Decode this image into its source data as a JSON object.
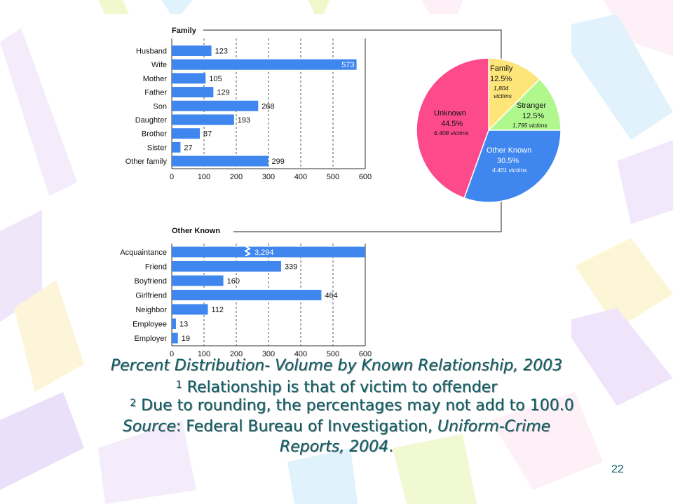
{
  "slide": {
    "number": "22"
  },
  "caption": {
    "line1": "Percent Distribution- Volume by Known Relationship, 2003",
    "line2_sup": "1",
    "line2": " Relationship is that of victim to offender",
    "line3_sup": "2",
    "line3": " Due to rounding, the percentages may not add to 100.0",
    "line4_italic": "Source",
    "line4_mid": ": Federal Bureau of Investigation, ",
    "line4_italic2": "Uniform-Crime",
    "line5": "Reports, 2004",
    "line5_end": "."
  },
  "colors": {
    "bar": "#3f86ee",
    "family": "#fde57a",
    "stranger": "#b0f88e",
    "other_known": "#3f86ee",
    "unknown": "#fc4a8b",
    "frame": "#6b6b6b"
  },
  "chart_data": [
    {
      "type": "bar",
      "title": "Family",
      "orientation": "horizontal",
      "categories": [
        "Husband",
        "Wife",
        "Mother",
        "Father",
        "Son",
        "Daughter",
        "Brother",
        "Sister",
        "Other family"
      ],
      "values": [
        123,
        573,
        105,
        129,
        268,
        193,
        87,
        27,
        299
      ],
      "xlim": [
        0,
        600
      ],
      "xticks": [
        "0",
        "100",
        "200",
        "300",
        "400",
        "500",
        "600"
      ],
      "grid": "dashed vertical at 100-unit intervals"
    },
    {
      "type": "bar",
      "title": "Other Known",
      "orientation": "horizontal",
      "categories": [
        "Acquaintance",
        "Friend",
        "Boyfriend",
        "Girlfriend",
        "Neighbor",
        "Employee",
        "Employer"
      ],
      "values": [
        3294,
        339,
        160,
        464,
        112,
        13,
        19
      ],
      "value_labels": [
        "3,294",
        "339",
        "160",
        "464",
        "112",
        "13",
        "19"
      ],
      "broken_bar": "Acquaintance",
      "xlim": [
        0,
        600
      ],
      "xticks": [
        "0",
        "100",
        "200",
        "300",
        "400",
        "500",
        "600"
      ],
      "grid": "dashed vertical at 100-unit intervals"
    },
    {
      "type": "pie",
      "slices": [
        {
          "name": "Family",
          "percent": 12.5,
          "percent_label": "12.5%",
          "victims": "1,804",
          "victims_unit": "victims"
        },
        {
          "name": "Stranger",
          "percent": 12.5,
          "percent_label": "12.5%",
          "victims": "1,795 victims"
        },
        {
          "name": "Other Known",
          "percent": 30.5,
          "percent_label": "30.5%",
          "victims": "4,401 victims"
        },
        {
          "name": "Unknown",
          "percent": 44.5,
          "percent_label": "44.5%",
          "victims": "6,408 victims"
        }
      ]
    }
  ]
}
